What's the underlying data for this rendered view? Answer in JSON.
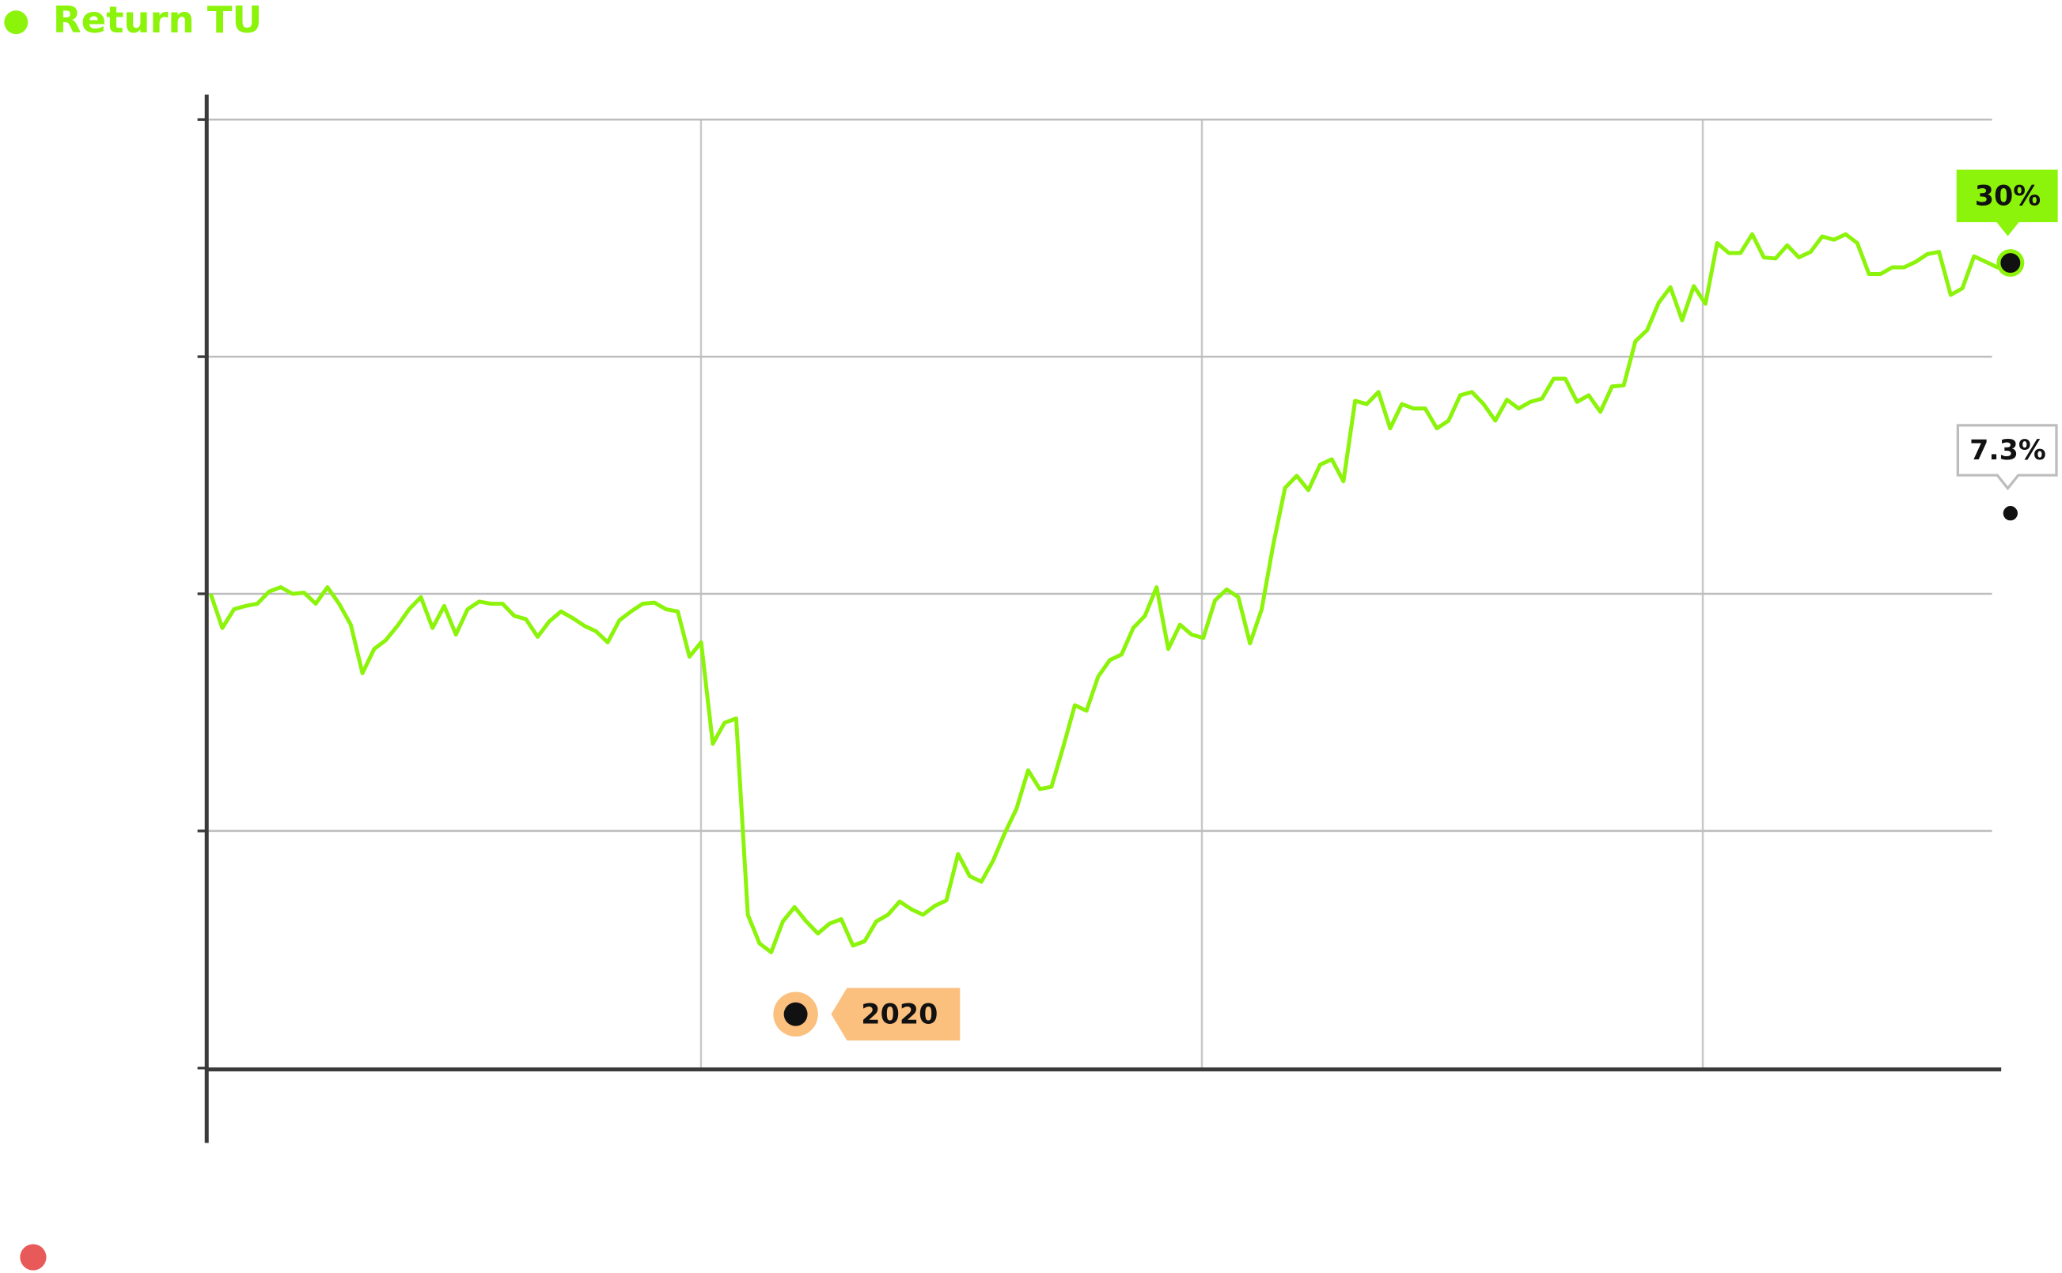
{
  "chart_data": {
    "type": "line",
    "series": [
      {
        "name": "Return TU",
        "color": "#8cf30a",
        "values": [
          0,
          -3.1,
          -1.4,
          -1.1,
          -0.9,
          0.2,
          0.6,
          0,
          0.1,
          -0.9,
          0.6,
          -0.9,
          -2.8,
          -7.2,
          -5.0,
          -4.2,
          -2.9,
          -1.4,
          -0.3,
          -3.1,
          -1.1,
          -3.7,
          -1.4,
          -0.7,
          -0.9,
          -0.9,
          -2.0,
          -2.3,
          -3.9,
          -2.5,
          -1.6,
          -2.2,
          -2.9,
          -3.4,
          -4.4,
          -2.4,
          -1.6,
          -0.9,
          -0.8,
          -1.4,
          -1.6,
          -5.7,
          -4.4,
          -13.6,
          -11.7,
          -11.3,
          -29.1,
          -31.7,
          -32.5,
          -29.7,
          -28.4,
          -29.7,
          -30.8,
          -29.9,
          -29.5,
          -31.9,
          -31.5,
          -29.7,
          -29.1,
          -27.9,
          -28.6,
          -29.1,
          -28.3,
          -27.8,
          -23.6,
          -25.6,
          -26.1,
          -24.2,
          -21.7,
          -19.5,
          -16.0,
          -17.7,
          -17.5,
          -13.9,
          -10.1,
          -10.6,
          -7.5,
          -6.0,
          -5.5,
          -3.1,
          -2.0,
          0.6,
          -5.0,
          -2.8,
          -3.7,
          -4.0,
          -0.6,
          0.4,
          -0.3,
          -4.5,
          -1.4,
          4.5,
          9.6,
          10.7,
          9.4,
          11.7,
          12.2,
          10.2,
          17.5,
          17.2,
          18.3,
          15.0,
          17.2,
          16.8,
          16.8,
          15.0,
          15.7,
          18.0,
          18.3,
          17.2,
          15.7,
          17.6,
          16.8,
          17.4,
          17.7,
          19.5,
          19.5,
          17.4,
          18.0,
          16.5,
          18.8,
          18.9,
          22.9,
          23.9,
          26.4,
          27.8,
          24.8,
          27.9,
          26.3,
          31.8,
          30.9,
          30.9,
          32.6,
          30.5,
          30.4,
          31.6,
          30.5,
          31.0,
          32.4,
          32.1,
          32.6,
          31.8,
          29.0,
          29.0,
          29.6,
          29.6,
          30.1,
          30.8,
          31.0,
          27.1,
          27.7,
          30.6,
          30.1,
          29.6,
          30
        ]
      }
    ],
    "markers": [
      {
        "label": "30%",
        "value": 30
      },
      {
        "label": "7.3%",
        "value": 7.3
      }
    ],
    "annotation": "2020",
    "ylim": [
      -43,
      43
    ],
    "yticks": [
      -43,
      -21.5,
      0,
      21.5,
      43
    ],
    "grid": true
  }
}
